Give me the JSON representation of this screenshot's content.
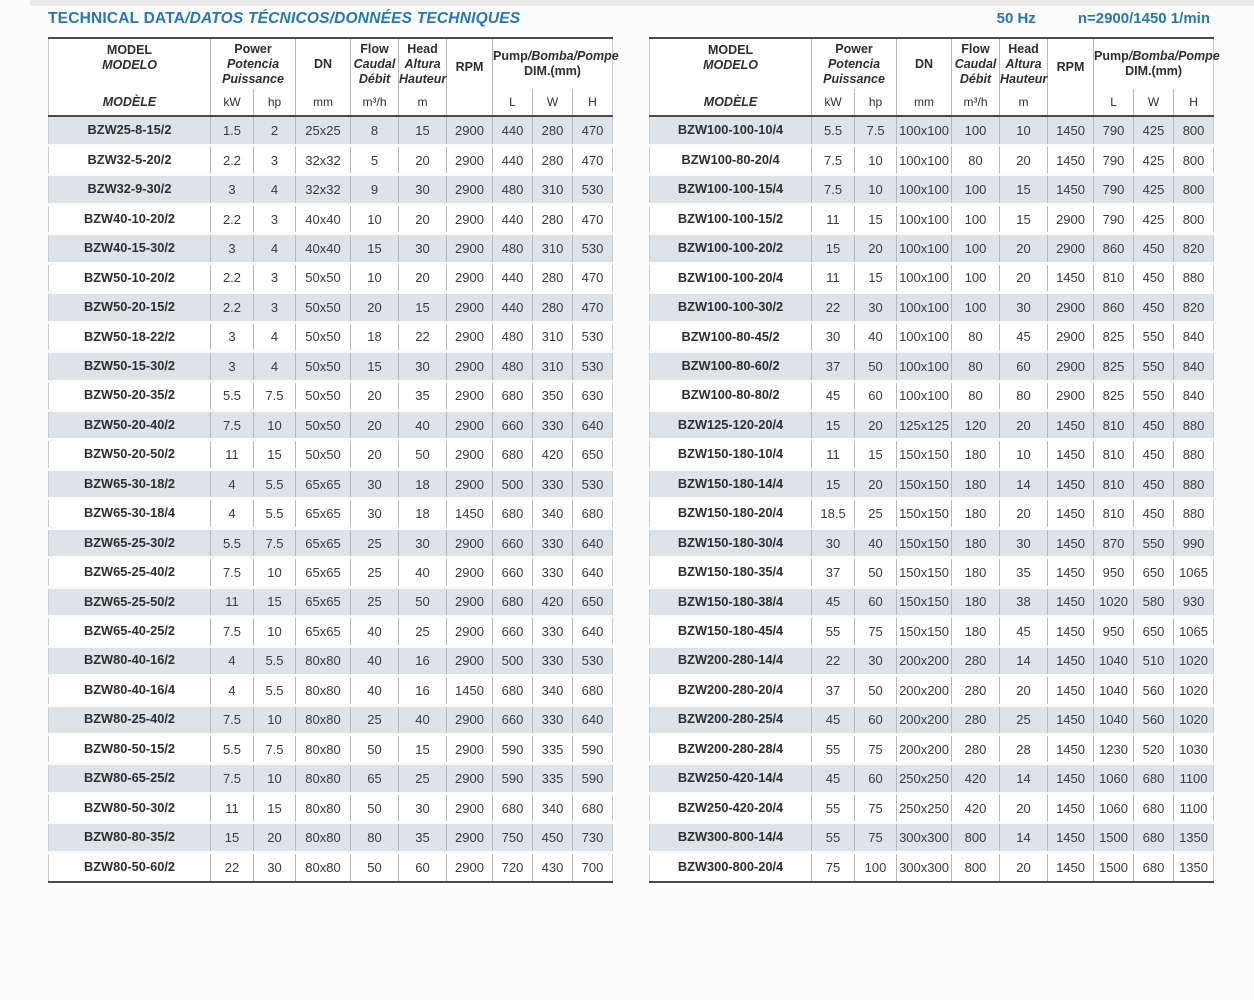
{
  "title": {
    "en": "TECHNICAL DATA",
    "rest": "/DATOS TÉCNICOS/DONNÉES TECHNIQUES"
  },
  "top_right": {
    "frequency": "50 Hz",
    "speed": "n=2900/1450 1/min"
  },
  "colors": {
    "accent": "#2577b5",
    "row_shade": "#dce3e9",
    "dark_border": "#474b4e",
    "grid_line": "#b2b9bf"
  },
  "header": {
    "model_lines": [
      "MODEL",
      "MODELO",
      "MODÈLE"
    ],
    "power_lines": [
      "Power",
      "Potencia",
      "Puissance"
    ],
    "power_units": [
      "kW",
      "hp"
    ],
    "dn_label": "DN",
    "dn_unit": "mm",
    "flow_lines": [
      "Flow",
      "Caudal",
      "Débit"
    ],
    "flow_unit": "m³/h",
    "head_lines": [
      "Head",
      "Altura",
      "Hauteur"
    ],
    "head_unit": "m",
    "rpm_label": "RPM",
    "dim_title_en": "Pump",
    "dim_title_rest": "/Bomba/Pompe",
    "dim_sub": "DIM.(mm)",
    "dim_units": [
      "L",
      "W",
      "H"
    ]
  },
  "tables": {
    "left": {
      "rows": [
        [
          "BZW25-8-15/2",
          "1.5",
          "2",
          "25x25",
          "8",
          "15",
          "2900",
          "440",
          "280",
          "470"
        ],
        [
          "BZW32-5-20/2",
          "2.2",
          "3",
          "32x32",
          "5",
          "20",
          "2900",
          "440",
          "280",
          "470"
        ],
        [
          "BZW32-9-30/2",
          "3",
          "4",
          "32x32",
          "9",
          "30",
          "2900",
          "480",
          "310",
          "530"
        ],
        [
          "BZW40-10-20/2",
          "2.2",
          "3",
          "40x40",
          "10",
          "20",
          "2900",
          "440",
          "280",
          "470"
        ],
        [
          "BZW40-15-30/2",
          "3",
          "4",
          "40x40",
          "15",
          "30",
          "2900",
          "480",
          "310",
          "530"
        ],
        [
          "BZW50-10-20/2",
          "2.2",
          "3",
          "50x50",
          "10",
          "20",
          "2900",
          "440",
          "280",
          "470"
        ],
        [
          "BZW50-20-15/2",
          "2.2",
          "3",
          "50x50",
          "20",
          "15",
          "2900",
          "440",
          "280",
          "470"
        ],
        [
          "BZW50-18-22/2",
          "3",
          "4",
          "50x50",
          "18",
          "22",
          "2900",
          "480",
          "310",
          "530"
        ],
        [
          "BZW50-15-30/2",
          "3",
          "4",
          "50x50",
          "15",
          "30",
          "2900",
          "480",
          "310",
          "530"
        ],
        [
          "BZW50-20-35/2",
          "5.5",
          "7.5",
          "50x50",
          "20",
          "35",
          "2900",
          "680",
          "350",
          "630"
        ],
        [
          "BZW50-20-40/2",
          "7.5",
          "10",
          "50x50",
          "20",
          "40",
          "2900",
          "660",
          "330",
          "640"
        ],
        [
          "BZW50-20-50/2",
          "11",
          "15",
          "50x50",
          "20",
          "50",
          "2900",
          "680",
          "420",
          "650"
        ],
        [
          "BZW65-30-18/2",
          "4",
          "5.5",
          "65x65",
          "30",
          "18",
          "2900",
          "500",
          "330",
          "530"
        ],
        [
          "BZW65-30-18/4",
          "4",
          "5.5",
          "65x65",
          "30",
          "18",
          "1450",
          "680",
          "340",
          "680"
        ],
        [
          "BZW65-25-30/2",
          "5.5",
          "7.5",
          "65x65",
          "25",
          "30",
          "2900",
          "660",
          "330",
          "640"
        ],
        [
          "BZW65-25-40/2",
          "7.5",
          "10",
          "65x65",
          "25",
          "40",
          "2900",
          "660",
          "330",
          "640"
        ],
        [
          "BZW65-25-50/2",
          "11",
          "15",
          "65x65",
          "25",
          "50",
          "2900",
          "680",
          "420",
          "650"
        ],
        [
          "BZW65-40-25/2",
          "7.5",
          "10",
          "65x65",
          "40",
          "25",
          "2900",
          "660",
          "330",
          "640"
        ],
        [
          "BZW80-40-16/2",
          "4",
          "5.5",
          "80x80",
          "40",
          "16",
          "2900",
          "500",
          "330",
          "530"
        ],
        [
          "BZW80-40-16/4",
          "4",
          "5.5",
          "80x80",
          "40",
          "16",
          "1450",
          "680",
          "340",
          "680"
        ],
        [
          "BZW80-25-40/2",
          "7.5",
          "10",
          "80x80",
          "25",
          "40",
          "2900",
          "660",
          "330",
          "640"
        ],
        [
          "BZW80-50-15/2",
          "5.5",
          "7.5",
          "80x80",
          "50",
          "15",
          "2900",
          "590",
          "335",
          "590"
        ],
        [
          "BZW80-65-25/2",
          "7.5",
          "10",
          "80x80",
          "65",
          "25",
          "2900",
          "590",
          "335",
          "590"
        ],
        [
          "BZW80-50-30/2",
          "11",
          "15",
          "80x80",
          "50",
          "30",
          "2900",
          "680",
          "340",
          "680"
        ],
        [
          "BZW80-80-35/2",
          "15",
          "20",
          "80x80",
          "80",
          "35",
          "2900",
          "750",
          "450",
          "730"
        ],
        [
          "BZW80-50-60/2",
          "22",
          "30",
          "80x80",
          "50",
          "60",
          "2900",
          "720",
          "430",
          "700"
        ]
      ]
    },
    "right": {
      "rows": [
        [
          "BZW100-100-10/4",
          "5.5",
          "7.5",
          "100x100",
          "100",
          "10",
          "1450",
          "790",
          "425",
          "800"
        ],
        [
          "BZW100-80-20/4",
          "7.5",
          "10",
          "100x100",
          "80",
          "20",
          "1450",
          "790",
          "425",
          "800"
        ],
        [
          "BZW100-100-15/4",
          "7.5",
          "10",
          "100x100",
          "100",
          "15",
          "1450",
          "790",
          "425",
          "800"
        ],
        [
          "BZW100-100-15/2",
          "11",
          "15",
          "100x100",
          "100",
          "15",
          "2900",
          "790",
          "425",
          "800"
        ],
        [
          "BZW100-100-20/2",
          "15",
          "20",
          "100x100",
          "100",
          "20",
          "2900",
          "860",
          "450",
          "820"
        ],
        [
          "BZW100-100-20/4",
          "11",
          "15",
          "100x100",
          "100",
          "20",
          "1450",
          "810",
          "450",
          "880"
        ],
        [
          "BZW100-100-30/2",
          "22",
          "30",
          "100x100",
          "100",
          "30",
          "2900",
          "860",
          "450",
          "820"
        ],
        [
          "BZW100-80-45/2",
          "30",
          "40",
          "100x100",
          "80",
          "45",
          "2900",
          "825",
          "550",
          "840"
        ],
        [
          "BZW100-80-60/2",
          "37",
          "50",
          "100x100",
          "80",
          "60",
          "2900",
          "825",
          "550",
          "840"
        ],
        [
          "BZW100-80-80/2",
          "45",
          "60",
          "100x100",
          "80",
          "80",
          "2900",
          "825",
          "550",
          "840"
        ],
        [
          "BZW125-120-20/4",
          "15",
          "20",
          "125x125",
          "120",
          "20",
          "1450",
          "810",
          "450",
          "880"
        ],
        [
          "BZW150-180-10/4",
          "11",
          "15",
          "150x150",
          "180",
          "10",
          "1450",
          "810",
          "450",
          "880"
        ],
        [
          "BZW150-180-14/4",
          "15",
          "20",
          "150x150",
          "180",
          "14",
          "1450",
          "810",
          "450",
          "880"
        ],
        [
          "BZW150-180-20/4",
          "18.5",
          "25",
          "150x150",
          "180",
          "20",
          "1450",
          "810",
          "450",
          "880"
        ],
        [
          "BZW150-180-30/4",
          "30",
          "40",
          "150x150",
          "180",
          "30",
          "1450",
          "870",
          "550",
          "990"
        ],
        [
          "BZW150-180-35/4",
          "37",
          "50",
          "150x150",
          "180",
          "35",
          "1450",
          "950",
          "650",
          "1065"
        ],
        [
          "BZW150-180-38/4",
          "45",
          "60",
          "150x150",
          "180",
          "38",
          "1450",
          "1020",
          "580",
          "930"
        ],
        [
          "BZW150-180-45/4",
          "55",
          "75",
          "150x150",
          "180",
          "45",
          "1450",
          "950",
          "650",
          "1065"
        ],
        [
          "BZW200-280-14/4",
          "22",
          "30",
          "200x200",
          "280",
          "14",
          "1450",
          "1040",
          "510",
          "1020"
        ],
        [
          "BZW200-280-20/4",
          "37",
          "50",
          "200x200",
          "280",
          "20",
          "1450",
          "1040",
          "560",
          "1020"
        ],
        [
          "BZW200-280-25/4",
          "45",
          "60",
          "200x200",
          "280",
          "25",
          "1450",
          "1040",
          "560",
          "1020"
        ],
        [
          "BZW200-280-28/4",
          "55",
          "75",
          "200x200",
          "280",
          "28",
          "1450",
          "1230",
          "520",
          "1030"
        ],
        [
          "BZW250-420-14/4",
          "45",
          "60",
          "250x250",
          "420",
          "14",
          "1450",
          "1060",
          "680",
          "1100"
        ],
        [
          "BZW250-420-20/4",
          "55",
          "75",
          "250x250",
          "420",
          "20",
          "1450",
          "1060",
          "680",
          "1100"
        ],
        [
          "BZW300-800-14/4",
          "55",
          "75",
          "300x300",
          "800",
          "14",
          "1450",
          "1500",
          "680",
          "1350"
        ],
        [
          "BZW300-800-20/4",
          "75",
          "100",
          "300x300",
          "800",
          "20",
          "1450",
          "1500",
          "680",
          "1350"
        ]
      ]
    }
  }
}
